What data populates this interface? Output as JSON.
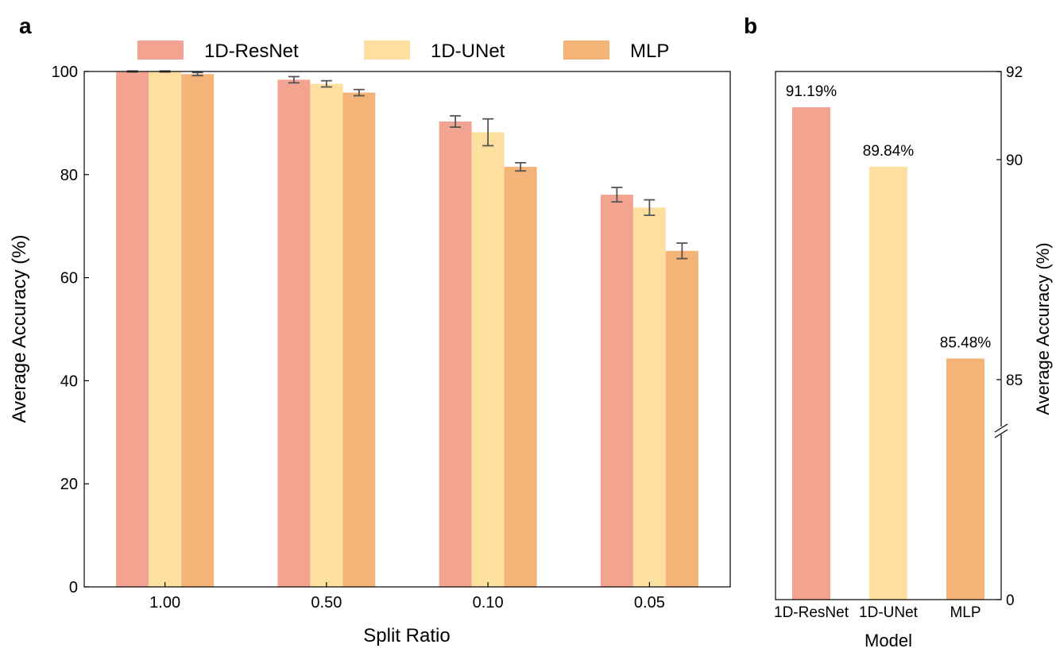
{
  "panel_a_letter": "a",
  "panel_b_letter": "b",
  "chart_data": [
    {
      "type": "bar",
      "panel": "a",
      "categories": [
        "1.00",
        "0.50",
        "0.10",
        "0.05"
      ],
      "series": [
        {
          "name": "1D-ResNet",
          "color": "#f2a491",
          "values": [
            100.0,
            98.4,
            90.3,
            76.1
          ],
          "errors": [
            0.1,
            0.6,
            1.1,
            1.4
          ]
        },
        {
          "name": "1D-UNet",
          "color": "#fde09f",
          "values": [
            100.0,
            97.6,
            88.2,
            73.6
          ],
          "errors": [
            0.1,
            0.6,
            2.6,
            1.5
          ]
        },
        {
          "name": "MLP",
          "color": "#f4b478",
          "values": [
            99.5,
            95.9,
            81.5,
            65.2
          ],
          "errors": [
            0.3,
            0.6,
            0.8,
            1.5
          ]
        }
      ],
      "title": "",
      "xlabel": "Split Ratio",
      "ylabel": "Average Accuracy (%)",
      "ylim": [
        0,
        100
      ],
      "yticks": [
        "0",
        "20",
        "40",
        "60",
        "80",
        "100"
      ],
      "legend_position": "top"
    },
    {
      "type": "bar",
      "panel": "b",
      "categories": [
        "1D-ResNet",
        "1D-UNet",
        "MLP"
      ],
      "values": [
        91.19,
        89.84,
        85.48
      ],
      "colors": [
        "#f2a491",
        "#fde09f",
        "#f4b478"
      ],
      "data_labels": [
        "91.19%",
        "89.84%",
        "85.48%"
      ],
      "title": "",
      "xlabel": "Model",
      "ylabel": "Average Accuracy (%)",
      "yaxis_side": "right",
      "ylim": [
        0,
        92
      ],
      "yticks": [
        "0",
        "85",
        "90",
        "92"
      ],
      "axis_break": true
    }
  ]
}
